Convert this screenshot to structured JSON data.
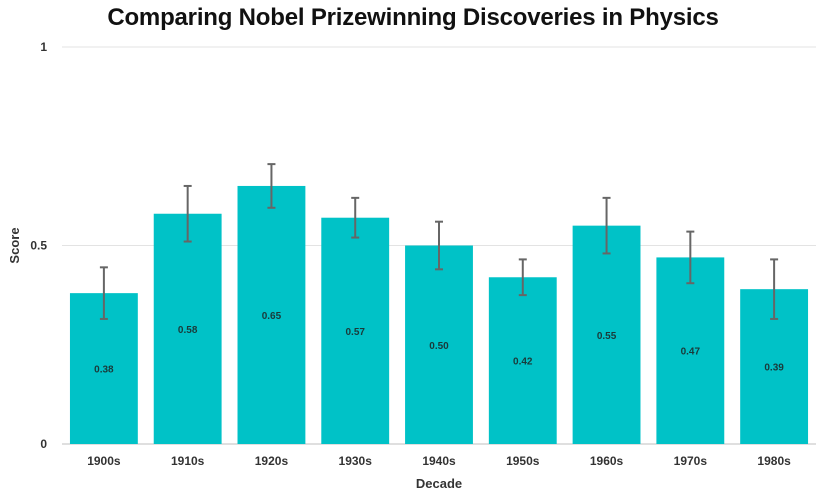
{
  "chart_data": {
    "type": "bar",
    "title": "Comparing Nobel Prizewinning Discoveries in Physics",
    "xlabel": "Decade",
    "ylabel": "Score",
    "categories": [
      "1900s",
      "1910s",
      "1920s",
      "1930s",
      "1940s",
      "1950s",
      "1960s",
      "1970s",
      "1980s"
    ],
    "values": [
      0.38,
      0.58,
      0.65,
      0.57,
      0.5,
      0.42,
      0.55,
      0.47,
      0.39
    ],
    "value_labels": [
      "0.38",
      "0.58",
      "0.65",
      "0.57",
      "0.50",
      "0.42",
      "0.55",
      "0.47",
      "0.39"
    ],
    "errors": [
      0.065,
      0.07,
      0.055,
      0.05,
      0.06,
      0.045,
      0.07,
      0.065,
      0.075
    ],
    "ylim": [
      0,
      1
    ],
    "yticks": [
      0,
      0.5,
      1
    ],
    "ytick_labels": [
      "0",
      "0.5",
      "1"
    ],
    "grid": true,
    "bar_color": "#00c2c7",
    "error_color": "#666666"
  }
}
